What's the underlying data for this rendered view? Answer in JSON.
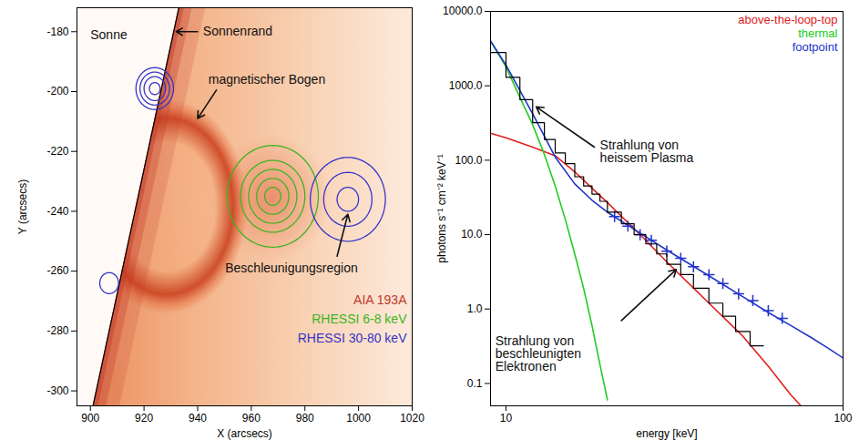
{
  "chart_data": [
    {
      "type": "contour",
      "x_label": "X (arcsecs)",
      "y_label": "Y (arcsecs)",
      "xlim": [
        895,
        1020
      ],
      "xticks": [
        900,
        920,
        940,
        960,
        980,
        1000,
        1020
      ],
      "ylim": [
        -305,
        -172
      ],
      "yticks": [
        -180,
        -200,
        -220,
        -240,
        -260,
        -280,
        -300
      ],
      "limb": {
        "x": [
          933,
          901
        ],
        "y": [
          -172,
          -305
        ]
      },
      "annotations": [
        "Sonne",
        "Sonnenrand",
        "magnetischer Bogen",
        "Beschleunigungsregion"
      ],
      "legend": "bottom-right",
      "series": [
        {
          "name": "AIA 193A",
          "color": "#c0392b"
        },
        {
          "name": "RHESSI 6-8 keV",
          "color": "#3cb521",
          "contours": [
            {
              "x": 968,
              "y": -235,
              "radii": [
                3,
                6,
                9,
                12,
                17
              ]
            }
          ]
        },
        {
          "name": "RHESSI 30-80 keV",
          "color": "#3535c8",
          "contours": [
            {
              "x": 924,
              "y": -199,
              "radii": [
                2,
                4,
                5.5,
                7
              ]
            },
            {
              "x": 907,
              "y": -264,
              "radii": [
                3.5
              ]
            },
            {
              "x": 996,
              "y": -236,
              "radii": [
                4,
                9,
                14
              ]
            }
          ]
        }
      ]
    },
    {
      "type": "line",
      "log": true,
      "x_label": "energy [keV]",
      "y_label": "photons s⁻¹ cm⁻² keV⁻¹",
      "xlim": [
        9,
        100
      ],
      "xticks": [
        10,
        100
      ],
      "ylim": [
        0.05,
        10000
      ],
      "yticks": [
        0.1,
        {
          "value": 1,
          "label": "1.0"
        },
        {
          "value": 10,
          "label": "10.0"
        },
        {
          "value": 100,
          "label": "100.0"
        },
        {
          "value": 1000,
          "label": "1000.0"
        },
        {
          "value": 10000,
          "label": "10000.0"
        }
      ],
      "legend": "top-right",
      "annotations": [
        "Strahlung von heissem Plasma",
        "Strahlung von beschleunigten Elektronen"
      ],
      "series": [
        {
          "name": "above-the-loop-top",
          "color": "#e02020",
          "type": "line",
          "x": [
            9,
            10,
            12,
            14,
            16,
            18,
            20,
            25,
            30,
            40,
            50,
            60,
            70,
            75
          ],
          "values": [
            230,
            200,
            150,
            115,
            70,
            42,
            27,
            10,
            4.3,
            1.2,
            0.45,
            0.17,
            0.07,
            0.05
          ]
        },
        {
          "name": "thermal",
          "color": "#22cc22",
          "type": "line",
          "x": [
            9,
            10,
            11,
            12,
            13,
            14,
            15,
            16,
            17,
            18,
            19,
            20
          ],
          "values": [
            4000,
            1800,
            700,
            300,
            120,
            45,
            16,
            5.5,
            1.9,
            0.6,
            0.18,
            0.06
          ]
        },
        {
          "name": "footpoint",
          "color": "#2233cc",
          "type": "line",
          "x": [
            9,
            10,
            12,
            14,
            16,
            18,
            20,
            25,
            30,
            40,
            50,
            60,
            70,
            80,
            90,
            100
          ],
          "values": [
            4000,
            1900,
            420,
            110,
            48,
            29,
            20,
            10.5,
            6.2,
            2.8,
            1.5,
            0.9,
            0.6,
            0.42,
            0.3,
            0.22
          ],
          "points": {
            "marker": "plus",
            "x": [
              21,
              23,
              25,
              27,
              30,
              33,
              36,
              40,
              44,
              49,
              54,
              60,
              66
            ],
            "values": [
              17.5,
              13,
              10,
              8.4,
              6,
              4.8,
              3.7,
              2.9,
              2.2,
              1.6,
              1.3,
              0.95,
              0.75
            ]
          }
        },
        {
          "name": null,
          "color": "#000000",
          "type": "step",
          "bins": [
            9,
            10,
            11,
            12,
            13,
            14,
            15,
            16,
            17,
            18,
            19,
            20,
            22,
            24,
            26,
            28,
            30,
            33,
            36,
            40,
            44,
            48,
            53,
            58
          ],
          "values": [
            2800,
            1300,
            650,
            320,
            190,
            125,
            90,
            60,
            45,
            35,
            28,
            20,
            14,
            10,
            7.5,
            5.5,
            4,
            2.9,
            1.9,
            1.2,
            0.8,
            0.5,
            0.32
          ]
        }
      ]
    }
  ]
}
